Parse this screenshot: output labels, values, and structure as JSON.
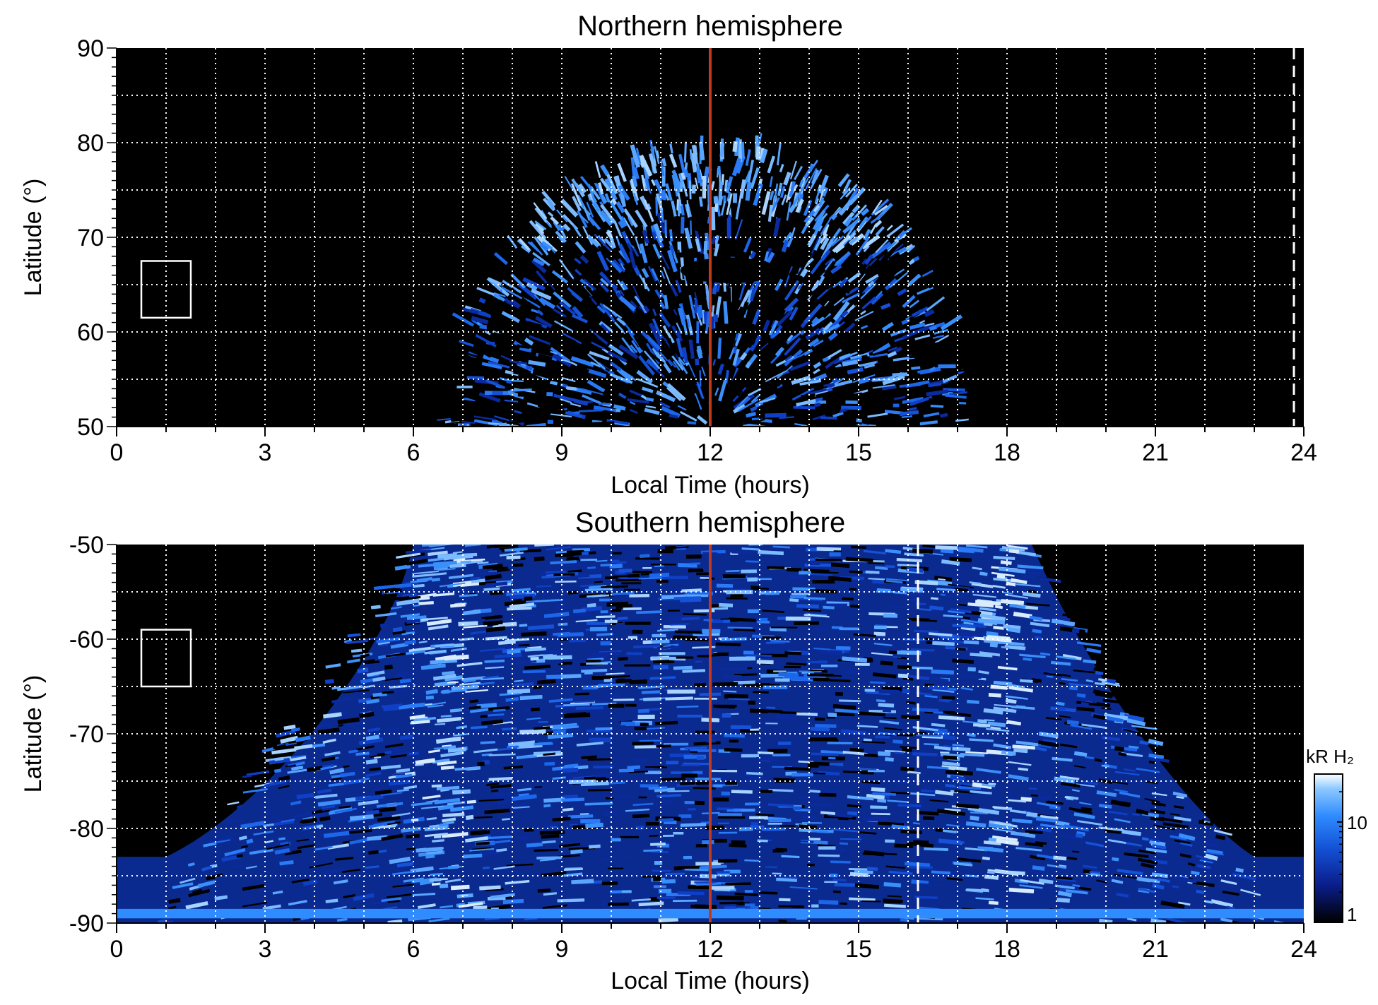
{
  "chart_data": [
    {
      "type": "heatmap",
      "title": "Northern hemisphere",
      "xlabel": "Local Time (hours)",
      "ylabel": "Latitude (°)",
      "xlim": [
        0,
        24
      ],
      "ylim": [
        50,
        90
      ],
      "xticks": [
        0,
        3,
        6,
        9,
        12,
        15,
        18,
        21,
        24
      ],
      "yticks": [
        50,
        60,
        70,
        80,
        90
      ],
      "xtick_labels": [
        "0",
        "3",
        "6",
        "9",
        "12",
        "15",
        "18",
        "21",
        "24"
      ],
      "ytick_labels": [
        "50",
        "60",
        "70",
        "80",
        "90"
      ],
      "grid": true,
      "noon_line_x": 12,
      "dashed_marker_x": 23.8,
      "box": {
        "x": [
          0.5,
          1.5
        ],
        "y": [
          61.5,
          67.5
        ]
      },
      "emission_region": {
        "x_range": [
          7.0,
          17.3
        ],
        "max_latitude": 79.5,
        "bright_oval_latitude": [
          68,
          79
        ]
      }
    },
    {
      "type": "heatmap",
      "title": "Southern hemisphere",
      "xlabel": "Local Time (hours)",
      "ylabel": "Latitude (°)",
      "xlim": [
        0,
        24
      ],
      "ylim": [
        -90,
        -50
      ],
      "xticks": [
        0,
        3,
        6,
        9,
        12,
        15,
        18,
        21,
        24
      ],
      "yticks": [
        -90,
        -80,
        -70,
        -60,
        -50
      ],
      "xtick_labels": [
        "0",
        "3",
        "6",
        "9",
        "12",
        "15",
        "18",
        "21",
        "24"
      ],
      "ytick_labels": [
        "-90",
        "-80",
        "-70",
        "-60",
        "-50"
      ],
      "grid": true,
      "noon_line_x": 12,
      "dashed_marker_x": 16.2,
      "box": {
        "x": [
          0.5,
          1.5
        ],
        "y": [
          -65,
          -59
        ]
      },
      "emission_region": {
        "x_range": [
          2.3,
          22.8
        ],
        "bright_bands_x": [
          6.5,
          17.7
        ]
      },
      "colorbar": {
        "label": "kR H₂",
        "scale": "log",
        "range": [
          1,
          30
        ],
        "tick_values": [
          1,
          10
        ],
        "tick_labels": [
          "1",
          "10"
        ],
        "colors": [
          "#000000",
          "#0a1d8a",
          "#1452d6",
          "#2f8cff",
          "#8cc8ff",
          "#ffffff"
        ]
      }
    }
  ],
  "colors": {
    "background": "#000000",
    "noon_line": "#c0391b",
    "grid": "#ffffff",
    "auroral_blue": "#1e6ff0",
    "auroral_bright": "#9fd3ff"
  }
}
